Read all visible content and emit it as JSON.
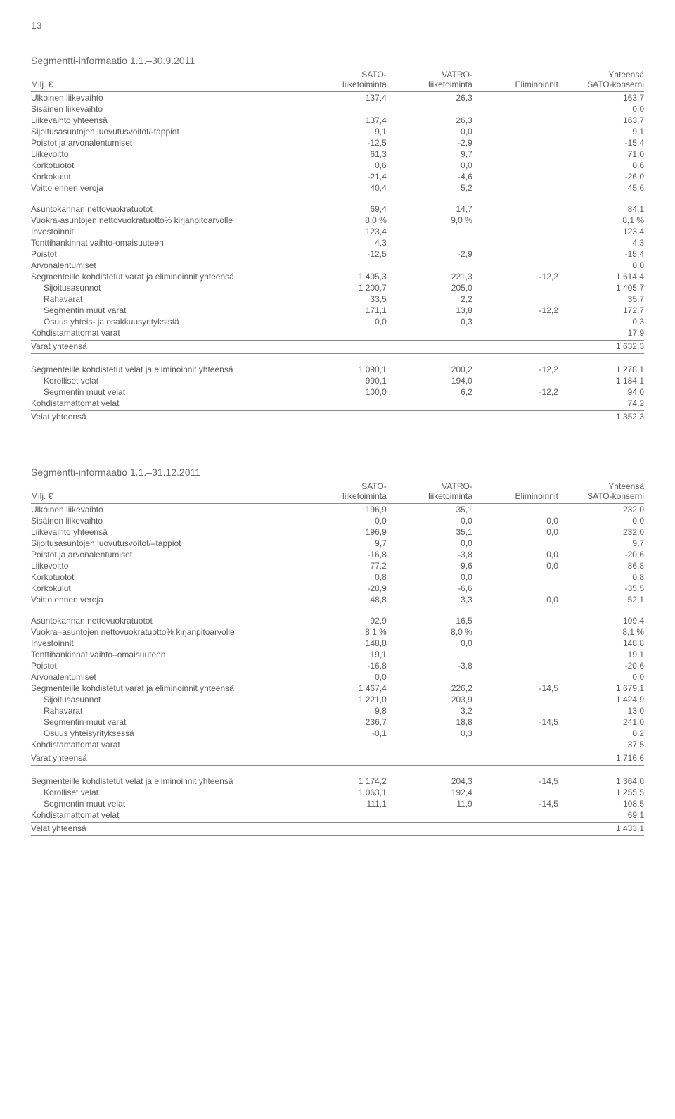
{
  "page_number": "13",
  "colors": {
    "text": "#5a5a5a",
    "rule": "#8a8a8a",
    "background": "#ffffff"
  },
  "typography": {
    "body_fontsize_pt": 9,
    "title_fontsize_pt": 11,
    "font_family": "Arial"
  },
  "columns_layout": {
    "label_width_pct": 44,
    "num_width_pct": 14
  },
  "hdr": {
    "milj": "Milj. €",
    "sato": "SATO-\nliiketoiminta",
    "vatro": "VATRO-\nliiketoiminta",
    "elim": "Eliminoinnit",
    "yht": "Yhteensä\nSATO-konserni"
  },
  "sections": [
    {
      "title": "Segmentti-informaatio 1.1.–30.9.2011",
      "groups": [
        {
          "rows": [
            {
              "label": "Ulkoinen liikevaihto",
              "c": [
                "137,4",
                "26,3",
                "",
                "163,7"
              ]
            },
            {
              "label": "Sisäinen liikevaihto",
              "c": [
                "",
                "",
                "",
                "0,0"
              ]
            },
            {
              "label": "Liikevaihto yhteensä",
              "c": [
                "137,4",
                "26,3",
                "",
                "163,7"
              ]
            },
            {
              "label": "Sijoitusasuntojen luovutusvoitot/-tappiot",
              "c": [
                "9,1",
                "0,0",
                "",
                "9,1"
              ]
            },
            {
              "label": "Poistot ja arvonalentumiset",
              "c": [
                "-12,5",
                "-2,9",
                "",
                "-15,4"
              ]
            },
            {
              "label": "Liikevoitto",
              "c": [
                "61,3",
                "9,7",
                "",
                "71,0"
              ]
            },
            {
              "label": "Korkotuotot",
              "c": [
                "0,6",
                "0,0",
                "",
                "0,6"
              ]
            },
            {
              "label": "Korkokulut",
              "c": [
                "-21,4",
                "-4,6",
                "",
                "-26,0"
              ]
            },
            {
              "label": "Voitto ennen veroja",
              "c": [
                "40,4",
                "5,2",
                "",
                "45,6"
              ]
            }
          ]
        },
        {
          "rows": [
            {
              "label": "Asuntokannan nettovuokratuotot",
              "c": [
                "69,4",
                "14,7",
                "",
                "84,1"
              ]
            },
            {
              "label": "Vuokra-asuntojen nettovuokratuotto% kirjanpitoarvolle",
              "c": [
                "8,0 %",
                "9,0 %",
                "",
                "8,1 %"
              ]
            },
            {
              "label": "Investoinnit",
              "c": [
                "123,4",
                "",
                "",
                "123,4"
              ]
            },
            {
              "label": "Tonttihankinnat vaihto-omaisuuteen",
              "c": [
                "4,3",
                "",
                "",
                "4,3"
              ]
            },
            {
              "label": "Poistot",
              "c": [
                "-12,5",
                "-2,9",
                "",
                "-15,4"
              ]
            },
            {
              "label": "Arvonalentumiset",
              "c": [
                "",
                "",
                "",
                "0,0"
              ]
            },
            {
              "label": "Segmenteille kohdistetut varat ja eliminoinnit yhteensä",
              "c": [
                "1 405,3",
                "221,3",
                "-12,2",
                "1 614,4"
              ]
            },
            {
              "label": "Sijoitusasunnot",
              "c": [
                "1 200,7",
                "205,0",
                "",
                "1 405,7"
              ],
              "indent": true
            },
            {
              "label": "Rahavarat",
              "c": [
                "33,5",
                "2,2",
                "",
                "35,7"
              ],
              "indent": true
            },
            {
              "label": "Segmentin muut varat",
              "c": [
                "171,1",
                "13,8",
                "-12,2",
                "172,7"
              ],
              "indent": true
            },
            {
              "label": "Osuus yhteis- ja osakkuusyrityksistä",
              "c": [
                "0,0",
                "0,3",
                "",
                "0,3"
              ],
              "indent": true
            },
            {
              "label": "Kohdistamattomat varat",
              "c": [
                "",
                "",
                "",
                "17,9"
              ],
              "rule": true
            },
            {
              "label": "Varat yhteensä",
              "c": [
                "",
                "",
                "",
                "1 632,3"
              ],
              "rule": true
            }
          ]
        },
        {
          "rows": [
            {
              "label": "Segmenteille kohdistetut velat ja eliminoinnit yhteensä",
              "c": [
                "1 090,1",
                "200,2",
                "-12,2",
                "1 278,1"
              ]
            },
            {
              "label": "Korolliset velat",
              "c": [
                "990,1",
                "194,0",
                "",
                "1 184,1"
              ],
              "indent": true
            },
            {
              "label": "Segmentin muut velat",
              "c": [
                "100,0",
                "6,2",
                "-12,2",
                "94,0"
              ],
              "indent": true
            },
            {
              "label": "Kohdistamattomat velat",
              "c": [
                "",
                "",
                "",
                "74,2"
              ],
              "rule": true
            },
            {
              "label": "Velat yhteensä",
              "c": [
                "",
                "",
                "",
                "1 352,3"
              ],
              "rule": true
            }
          ]
        }
      ]
    },
    {
      "title": "Segmentti-informaatio 1.1.–31.12.2011",
      "groups": [
        {
          "rows": [
            {
              "label": "Ulkoinen liikevaihto",
              "c": [
                "196,9",
                "35,1",
                "",
                "232,0"
              ]
            },
            {
              "label": "Sisäinen liikevaihto",
              "c": [
                "0,0",
                "0,0",
                "0,0",
                "0,0"
              ]
            },
            {
              "label": "Liikevaihto yhteensä",
              "c": [
                "196,9",
                "35,1",
                "0,0",
                "232,0"
              ]
            },
            {
              "label": "Sijoitusasuntojen luovutusvoitot/–tappiot",
              "c": [
                "9,7",
                "0,0",
                "",
                "9,7"
              ]
            },
            {
              "label": "Poistot ja arvonalentumiset",
              "c": [
                "-16,8",
                "-3,8",
                "0,0",
                "-20,6"
              ]
            },
            {
              "label": "Liikevoitto",
              "c": [
                "77,2",
                "9,6",
                "0,0",
                "86,8"
              ]
            },
            {
              "label": "Korkotuotot",
              "c": [
                "0,8",
                "0,0",
                "",
                "0,8"
              ]
            },
            {
              "label": "Korkokulut",
              "c": [
                "-28,9",
                "-6,6",
                "",
                "-35,5"
              ]
            },
            {
              "label": "Voitto ennen veroja",
              "c": [
                "48,8",
                "3,3",
                "0,0",
                "52,1"
              ]
            }
          ]
        },
        {
          "rows": [
            {
              "label": "Asuntokannan nettovuokratuotot",
              "c": [
                "92,9",
                "16,5",
                "",
                "109,4"
              ]
            },
            {
              "label": "Vuokra–asuntojen nettovuokratuotto% kirjanpitoarvolle",
              "c": [
                "8,1 %",
                "8,0 %",
                "",
                "8,1 %"
              ]
            },
            {
              "label": "Investoinnit",
              "c": [
                "148,8",
                "0,0",
                "",
                "148,8"
              ]
            },
            {
              "label": "Tonttihankinnat vaihto–omaisuuteen",
              "c": [
                "19,1",
                "",
                "",
                "19,1"
              ]
            },
            {
              "label": "Poistot",
              "c": [
                "-16,8",
                "-3,8",
                "",
                "-20,6"
              ]
            },
            {
              "label": "Arvonalentumiset",
              "c": [
                "0,0",
                "",
                "",
                "0,0"
              ]
            },
            {
              "label": "Segmenteille kohdistetut varat ja eliminoinnit yhteensä",
              "c": [
                "1 467,4",
                "226,2",
                "-14,5",
                "1 679,1"
              ]
            },
            {
              "label": "Sijoitusasunnot",
              "c": [
                "1 221,0",
                "203,9",
                "",
                "1 424,9"
              ],
              "indent": true
            },
            {
              "label": "Rahavarat",
              "c": [
                "9,8",
                "3,2",
                "",
                "13,0"
              ],
              "indent": true
            },
            {
              "label": "Segmentin muut varat",
              "c": [
                "236,7",
                "18,8",
                "-14,5",
                "241,0"
              ],
              "indent": true
            },
            {
              "label": "Osuus yhteisyrityksessä",
              "c": [
                "-0,1",
                "0,3",
                "",
                "0,2"
              ],
              "indent": true
            },
            {
              "label": "Kohdistamattomat varat",
              "c": [
                "",
                "",
                "",
                "37,5"
              ],
              "rule": true
            },
            {
              "label": "Varat yhteensä",
              "c": [
                "",
                "",
                "",
                "1 716,6"
              ],
              "rule": true
            }
          ]
        },
        {
          "rows": [
            {
              "label": "Segmenteille kohdistetut velat ja eliminoinnit yhteensä",
              "c": [
                "1 174,2",
                "204,3",
                "-14,5",
                "1 364,0"
              ]
            },
            {
              "label": "Korolliset velat",
              "c": [
                "1 063,1",
                "192,4",
                "",
                "1 255,5"
              ],
              "indent": true
            },
            {
              "label": "Segmentin muut velat",
              "c": [
                "111,1",
                "11,9",
                "-14,5",
                "108,5"
              ],
              "indent": true
            },
            {
              "label": "Kohdistamattomat velat",
              "c": [
                "",
                "",
                "",
                "69,1"
              ],
              "rule": true
            },
            {
              "label": "Velat yhteensä",
              "c": [
                "",
                "",
                "",
                "1 433,1"
              ],
              "rule": true
            }
          ]
        }
      ]
    }
  ]
}
